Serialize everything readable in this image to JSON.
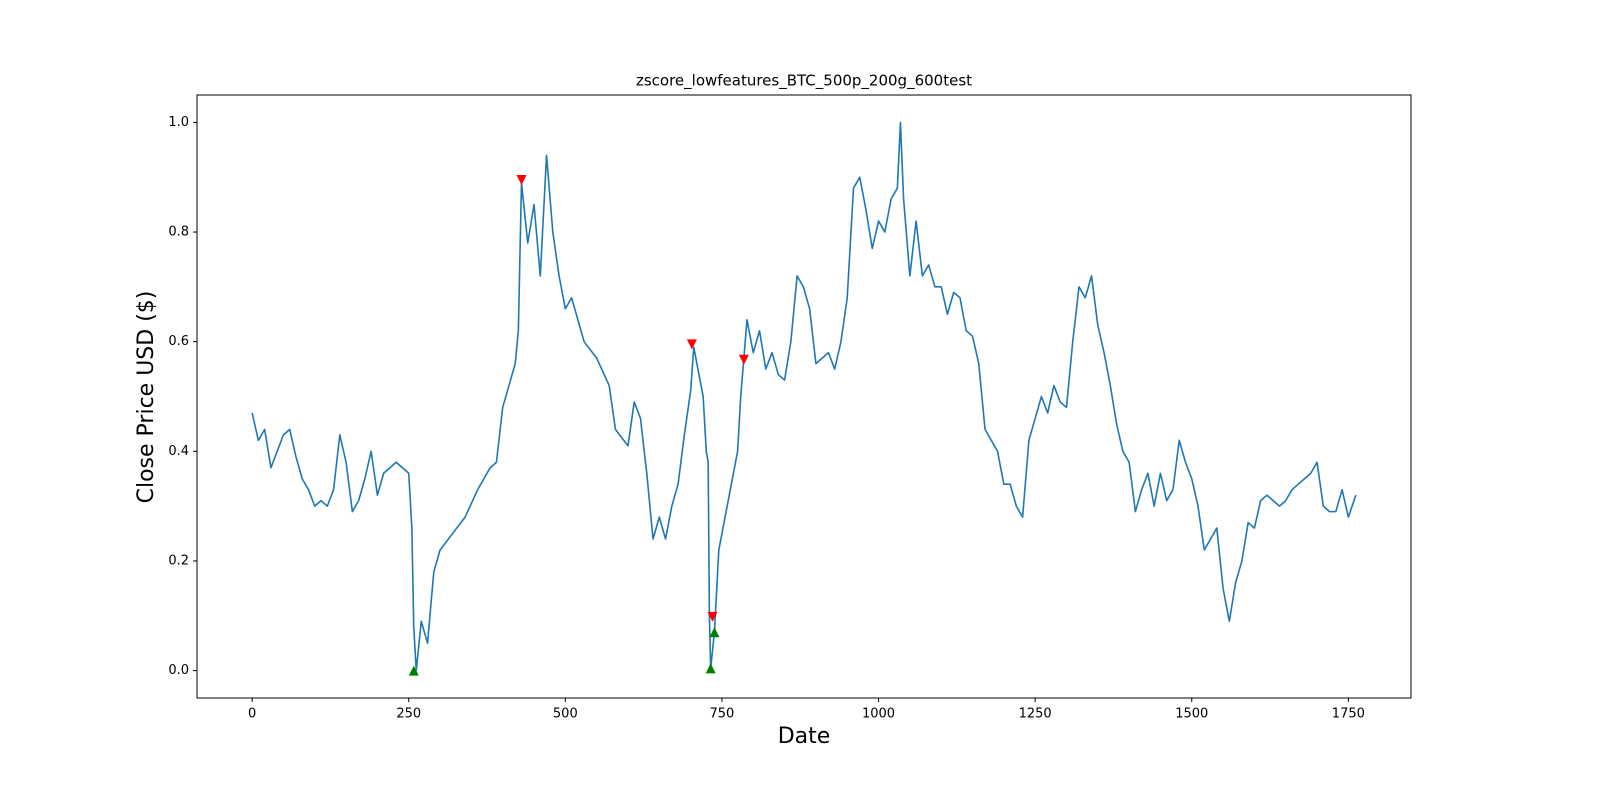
{
  "chart_data": {
    "type": "line",
    "title": "zscore_lowfeatures_BTC_500p_200g_600test",
    "x_label": "Date",
    "y_label": "Close Price USD ($)",
    "color": "#1f77b4",
    "x": [
      0,
      10,
      20,
      30,
      40,
      50,
      60,
      70,
      80,
      90,
      100,
      110,
      120,
      130,
      140,
      150,
      160,
      170,
      180,
      190,
      200,
      210,
      220,
      230,
      240,
      250,
      255,
      258,
      262,
      270,
      280,
      290,
      300,
      320,
      340,
      360,
      380,
      390,
      400,
      410,
      420,
      425,
      430,
      440,
      450,
      460,
      470,
      480,
      490,
      500,
      510,
      520,
      530,
      550,
      570,
      580,
      600,
      610,
      620,
      630,
      640,
      650,
      660,
      670,
      680,
      690,
      700,
      705,
      720,
      725,
      728,
      730,
      732,
      738,
      745,
      755,
      765,
      775,
      780,
      785,
      790,
      800,
      810,
      820,
      830,
      840,
      850,
      860,
      870,
      880,
      890,
      900,
      910,
      920,
      930,
      940,
      950,
      960,
      970,
      980,
      990,
      1000,
      1010,
      1020,
      1030,
      1035,
      1040,
      1050,
      1060,
      1070,
      1080,
      1090,
      1100,
      1110,
      1120,
      1130,
      1140,
      1150,
      1160,
      1170,
      1180,
      1190,
      1200,
      1210,
      1220,
      1230,
      1240,
      1250,
      1260,
      1270,
      1280,
      1290,
      1300,
      1310,
      1320,
      1330,
      1340,
      1350,
      1360,
      1370,
      1380,
      1390,
      1400,
      1410,
      1420,
      1430,
      1440,
      1450,
      1460,
      1470,
      1480,
      1490,
      1500,
      1510,
      1520,
      1530,
      1540,
      1550,
      1560,
      1570,
      1580,
      1590,
      1600,
      1610,
      1620,
      1630,
      1640,
      1650,
      1660,
      1670,
      1680,
      1690,
      1700,
      1710,
      1720,
      1730,
      1740,
      1750,
      1762
    ],
    "values": [
      0.47,
      0.42,
      0.44,
      0.37,
      0.4,
      0.43,
      0.44,
      0.39,
      0.35,
      0.33,
      0.3,
      0.31,
      0.3,
      0.33,
      0.43,
      0.38,
      0.29,
      0.31,
      0.35,
      0.4,
      0.32,
      0.36,
      0.37,
      0.38,
      0.37,
      0.36,
      0.26,
      0.08,
      0.0,
      0.09,
      0.05,
      0.18,
      0.22,
      0.25,
      0.28,
      0.33,
      0.37,
      0.38,
      0.48,
      0.52,
      0.56,
      0.62,
      0.89,
      0.78,
      0.85,
      0.72,
      0.94,
      0.8,
      0.72,
      0.66,
      0.68,
      0.64,
      0.6,
      0.57,
      0.52,
      0.44,
      0.41,
      0.49,
      0.46,
      0.36,
      0.24,
      0.28,
      0.24,
      0.3,
      0.34,
      0.43,
      0.51,
      0.59,
      0.5,
      0.4,
      0.38,
      0.1,
      0.004,
      0.07,
      0.22,
      0.28,
      0.34,
      0.4,
      0.5,
      0.57,
      0.64,
      0.58,
      0.62,
      0.55,
      0.58,
      0.54,
      0.53,
      0.6,
      0.72,
      0.7,
      0.66,
      0.56,
      0.57,
      0.58,
      0.55,
      0.6,
      0.68,
      0.88,
      0.9,
      0.84,
      0.77,
      0.82,
      0.8,
      0.86,
      0.88,
      1.0,
      0.86,
      0.72,
      0.82,
      0.72,
      0.74,
      0.7,
      0.7,
      0.65,
      0.69,
      0.68,
      0.62,
      0.61,
      0.56,
      0.44,
      0.42,
      0.4,
      0.34,
      0.34,
      0.3,
      0.28,
      0.42,
      0.46,
      0.5,
      0.47,
      0.52,
      0.49,
      0.48,
      0.6,
      0.7,
      0.68,
      0.72,
      0.63,
      0.58,
      0.52,
      0.45,
      0.4,
      0.38,
      0.29,
      0.33,
      0.36,
      0.3,
      0.36,
      0.31,
      0.33,
      0.42,
      0.38,
      0.35,
      0.3,
      0.22,
      0.24,
      0.26,
      0.15,
      0.09,
      0.16,
      0.2,
      0.27,
      0.26,
      0.31,
      0.32,
      0.31,
      0.3,
      0.31,
      0.33,
      0.34,
      0.35,
      0.36,
      0.38,
      0.3,
      0.29,
      0.29,
      0.33,
      0.28,
      0.32
    ],
    "sell_markers": {
      "color": "red",
      "x": [
        430,
        702,
        735,
        785
      ],
      "values": [
        0.895,
        0.595,
        0.098,
        0.567
      ]
    },
    "buy_markers": {
      "color": "green",
      "x": [
        258,
        732,
        738
      ],
      "values": [
        0.0,
        0.004,
        0.07
      ]
    },
    "xlim": [
      -88,
      1850
    ],
    "ylim": [
      -0.05,
      1.05
    ],
    "xticks": [
      0,
      250,
      500,
      750,
      1000,
      1250,
      1500,
      1750
    ],
    "yticks": [
      {
        "value": 0,
        "label": "0.0"
      },
      0.2,
      0.4,
      0.6,
      0.8,
      {
        "value": 1,
        "label": "1.0"
      }
    ]
  }
}
